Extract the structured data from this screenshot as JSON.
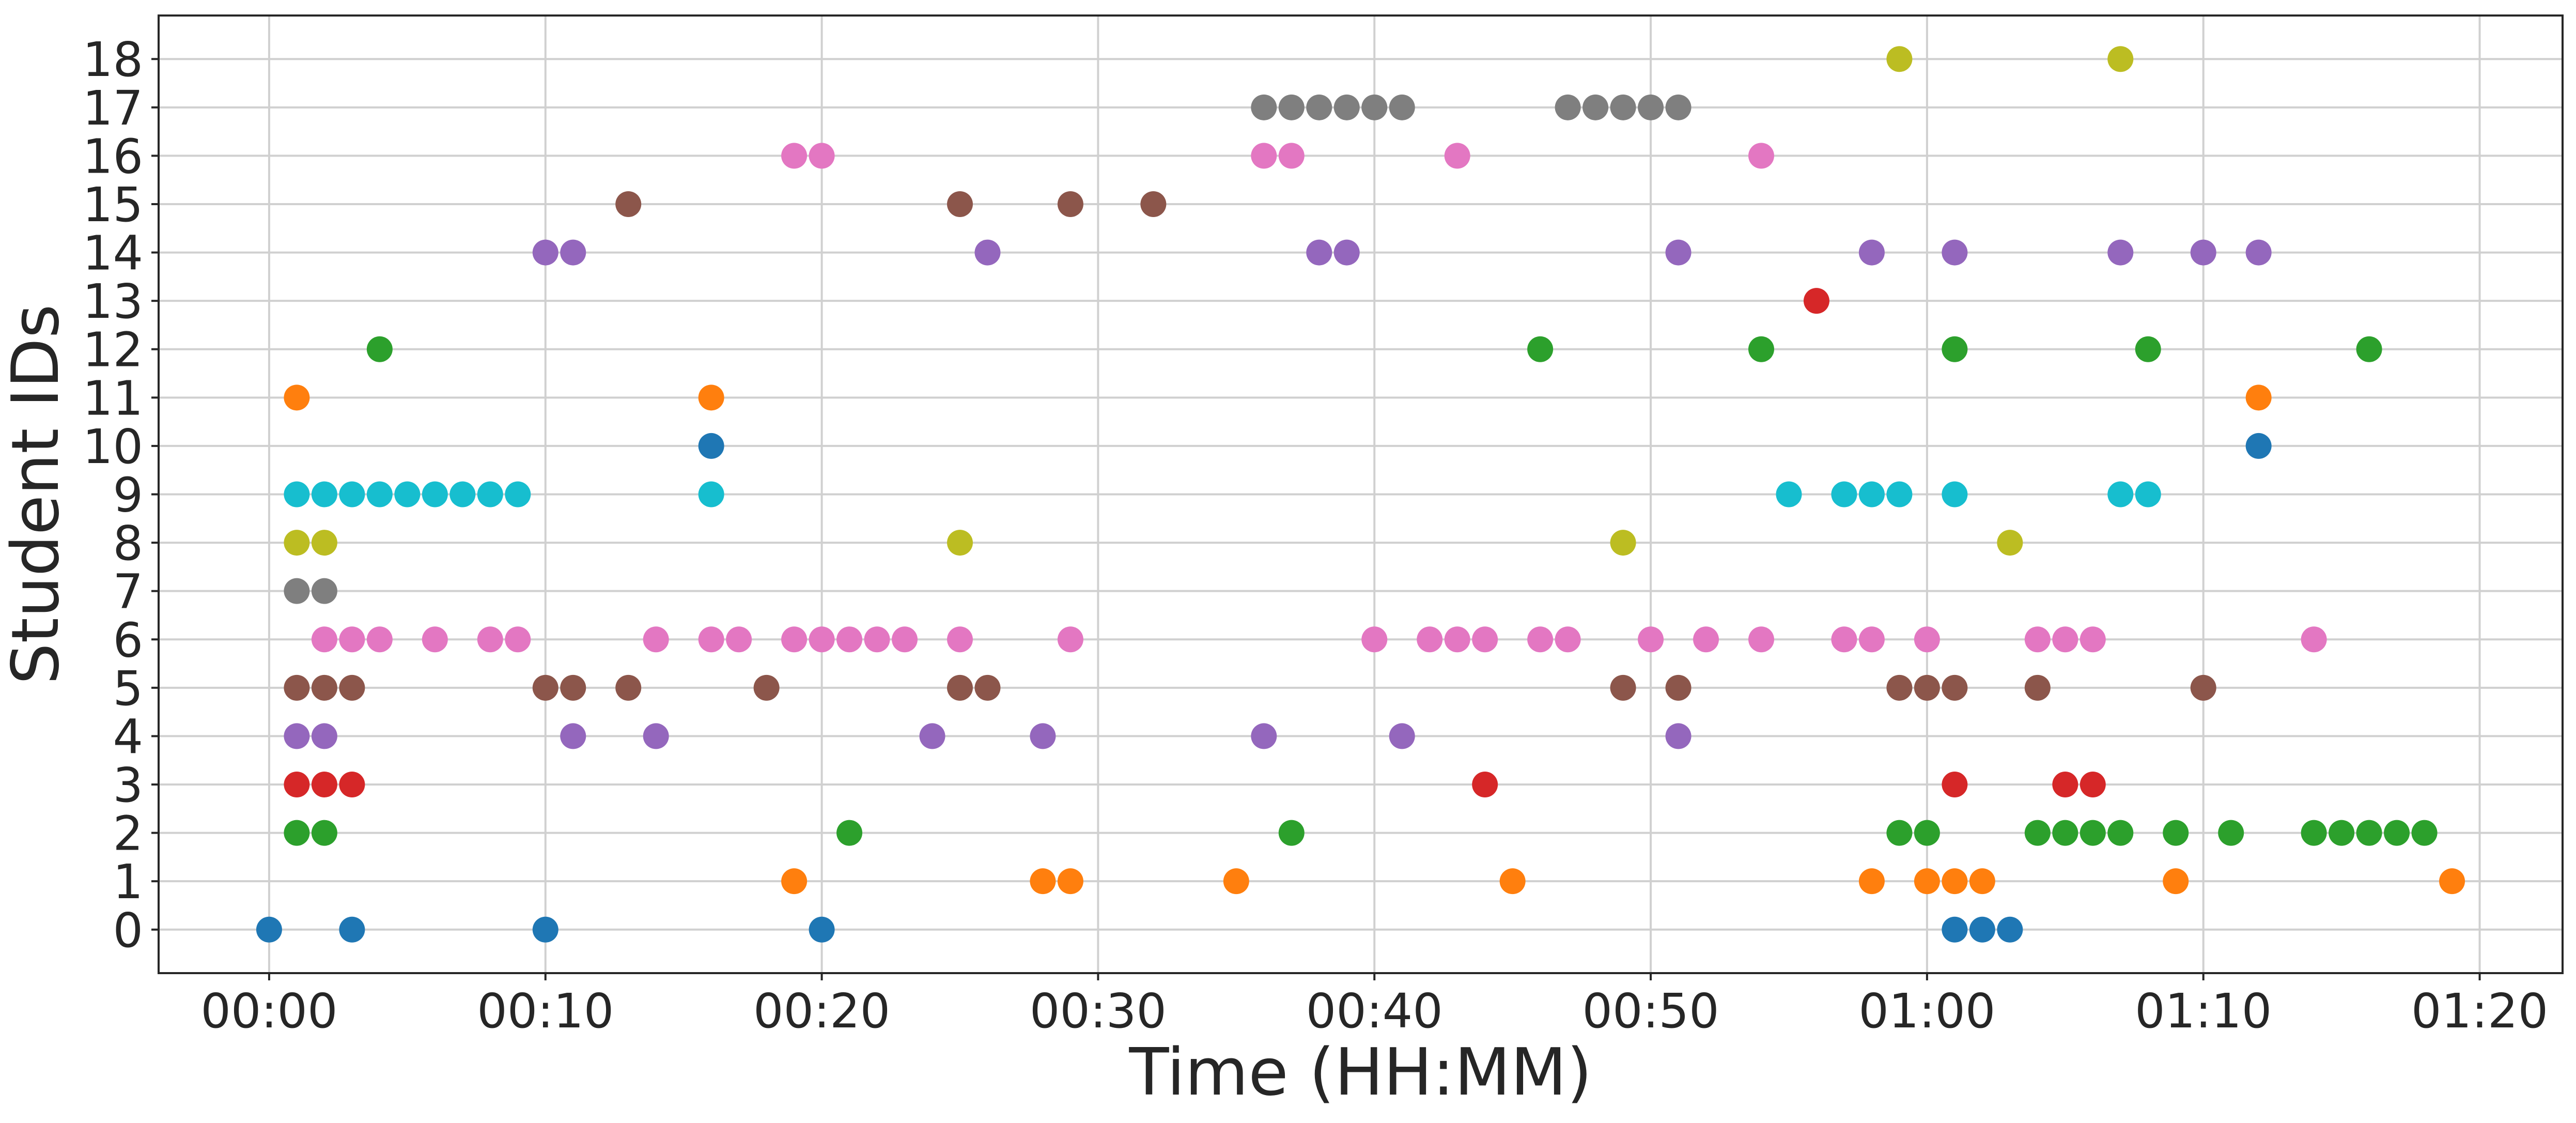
{
  "chart_data": {
    "type": "scatter",
    "xlabel": "Time (HH:MM)",
    "ylabel": "Student IDs",
    "x_unit": "minutes",
    "xlim": [
      -4,
      83
    ],
    "ylim": [
      -0.9,
      18.9
    ],
    "x_ticks": [
      {
        "value": 0,
        "label": "00:00"
      },
      {
        "value": 10,
        "label": "00:10"
      },
      {
        "value": 20,
        "label": "00:20"
      },
      {
        "value": 30,
        "label": "00:30"
      },
      {
        "value": 40,
        "label": "00:40"
      },
      {
        "value": 50,
        "label": "00:50"
      },
      {
        "value": 60,
        "label": "01:00"
      },
      {
        "value": 70,
        "label": "01:10"
      },
      {
        "value": 80,
        "label": "01:20"
      }
    ],
    "y_ticks": [
      "0",
      "1",
      "2",
      "3",
      "4",
      "5",
      "6",
      "7",
      "8",
      "9",
      "10",
      "11",
      "12",
      "13",
      "14",
      "15",
      "16",
      "17",
      "18"
    ],
    "grid": true,
    "legend": "none",
    "colors": [
      "#1f77b4",
      "#ff7f0e",
      "#2ca02c",
      "#d62728",
      "#9467bd",
      "#8c564b",
      "#e377c2",
      "#7f7f7f",
      "#bcbd22",
      "#17becf"
    ],
    "series": [
      {
        "student": 0,
        "color": "#1f77b4",
        "x": [
          0,
          3,
          10,
          20,
          61,
          62,
          63
        ]
      },
      {
        "student": 1,
        "color": "#ff7f0e",
        "x": [
          19,
          28,
          29,
          35,
          45,
          58,
          60,
          61,
          62,
          69,
          79
        ]
      },
      {
        "student": 2,
        "color": "#2ca02c",
        "x": [
          1,
          2,
          21,
          37,
          59,
          60,
          64,
          65,
          66,
          67,
          69,
          71,
          74,
          75,
          76,
          77,
          78
        ]
      },
      {
        "student": 3,
        "color": "#d62728",
        "x": [
          1,
          2,
          3,
          44,
          61,
          65,
          66
        ]
      },
      {
        "student": 4,
        "color": "#9467bd",
        "x": [
          1,
          2,
          11,
          14,
          24,
          28,
          36,
          41,
          51
        ]
      },
      {
        "student": 5,
        "color": "#8c564b",
        "x": [
          1,
          2,
          3,
          10,
          11,
          13,
          18,
          25,
          26,
          49,
          51,
          59,
          60,
          61,
          64,
          70
        ]
      },
      {
        "student": 6,
        "color": "#e377c2",
        "x": [
          2,
          3,
          4,
          6,
          8,
          9,
          14,
          16,
          17,
          19,
          20,
          21,
          22,
          23,
          25,
          29,
          40,
          42,
          43,
          44,
          46,
          47,
          50,
          52,
          54,
          57,
          58,
          60,
          64,
          65,
          66,
          74
        ]
      },
      {
        "student": 7,
        "color": "#7f7f7f",
        "x": [
          1,
          2
        ]
      },
      {
        "student": 8,
        "color": "#bcbd22",
        "x": [
          1,
          2,
          25,
          49,
          63
        ]
      },
      {
        "student": 9,
        "color": "#17becf",
        "x": [
          1,
          2,
          3,
          4,
          5,
          6,
          7,
          8,
          9,
          16,
          55,
          57,
          58,
          59,
          61,
          67,
          68
        ]
      },
      {
        "student": 10,
        "color": "#1f77b4",
        "x": [
          16,
          72
        ]
      },
      {
        "student": 11,
        "color": "#ff7f0e",
        "x": [
          1,
          16,
          72
        ]
      },
      {
        "student": 12,
        "color": "#2ca02c",
        "x": [
          4,
          46,
          54,
          61,
          68,
          76
        ]
      },
      {
        "student": 13,
        "color": "#d62728",
        "x": [
          56
        ]
      },
      {
        "student": 14,
        "color": "#9467bd",
        "x": [
          10,
          11,
          26,
          38,
          39,
          51,
          58,
          61,
          67,
          70,
          72
        ]
      },
      {
        "student": 15,
        "color": "#8c564b",
        "x": [
          13,
          25,
          29,
          32
        ]
      },
      {
        "student": 16,
        "color": "#e377c2",
        "x": [
          19,
          20,
          36,
          37,
          43,
          54
        ]
      },
      {
        "student": 17,
        "color": "#7f7f7f",
        "x": [
          36,
          37,
          38,
          39,
          40,
          41,
          47,
          48,
          49,
          50,
          51
        ]
      },
      {
        "student": 18,
        "color": "#bcbd22",
        "x": [
          59,
          67
        ]
      }
    ]
  }
}
